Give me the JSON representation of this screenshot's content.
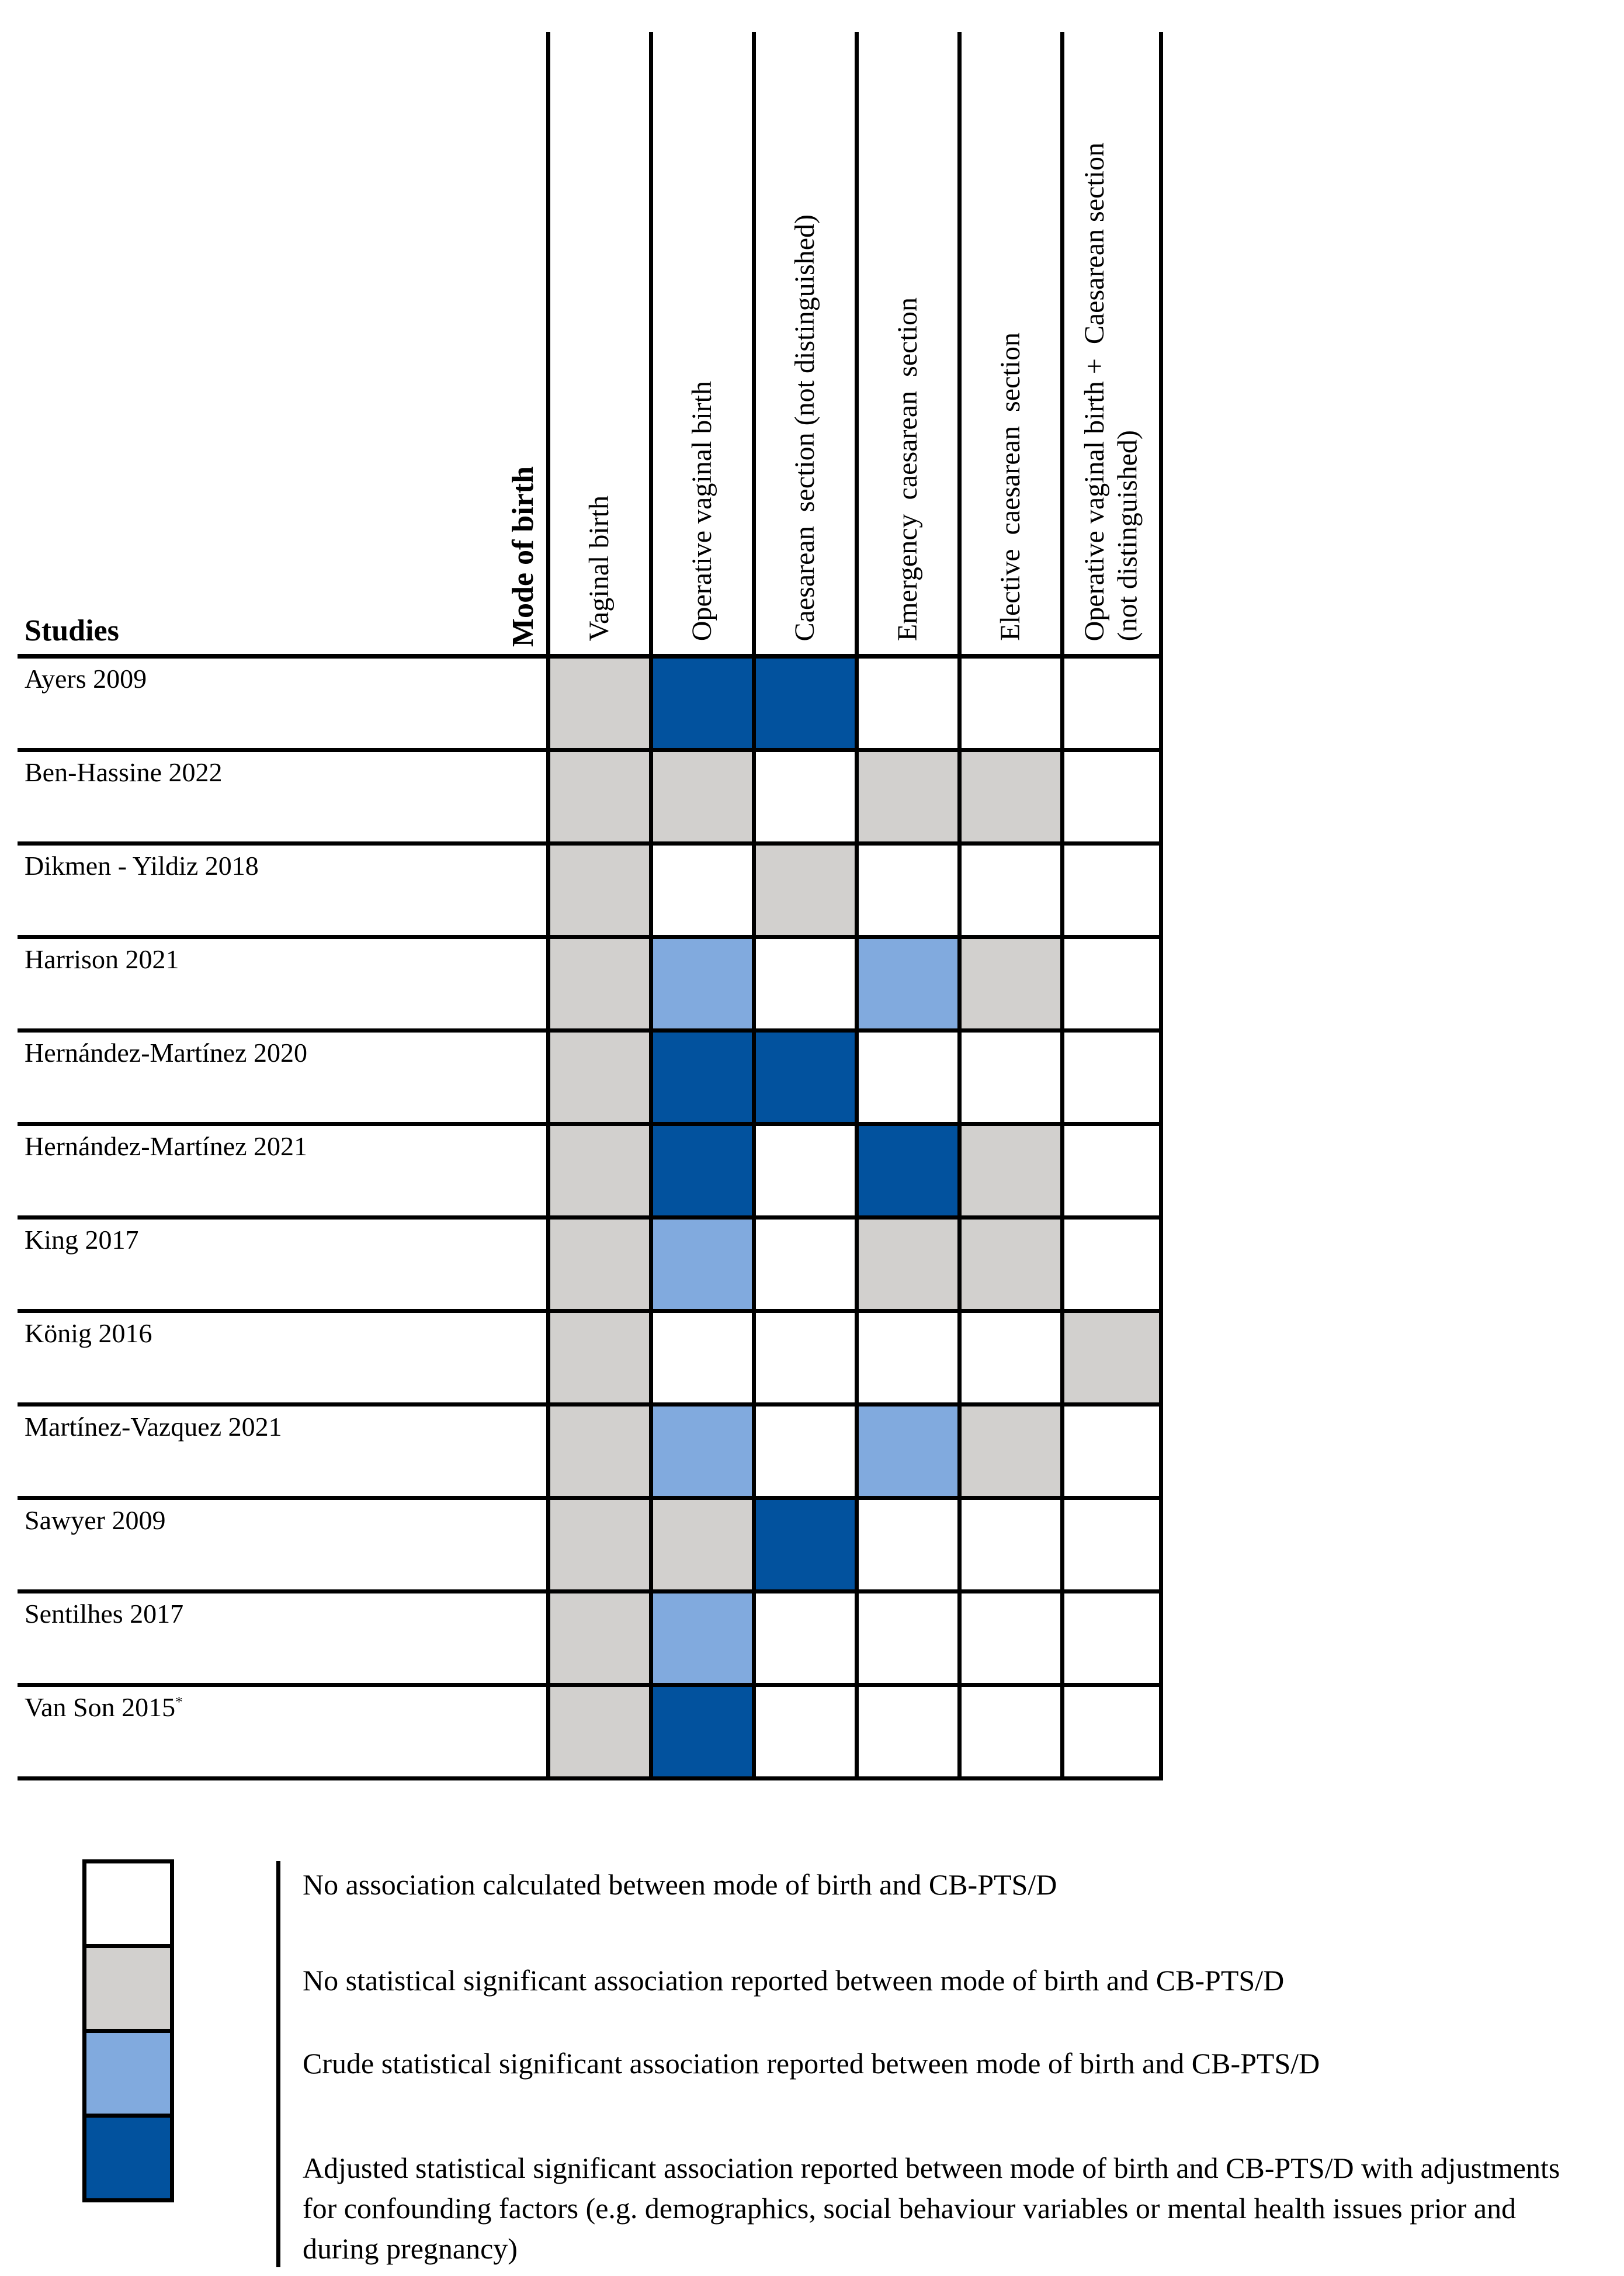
{
  "figure": {
    "studies_header": "Studies",
    "mode_of_birth_header": "Mode of birth"
  },
  "chart_data": {
    "type": "heatmap",
    "title": "",
    "columns": [
      "Vaginal birth",
      "Operative vaginal birth",
      "Caesarean  section (not distinguished)",
      "Emergency  caesarean  section",
      "Elective  caesarean  section",
      "Operative vaginal birth +  Caesarean section\n(not distinguished)"
    ],
    "studies": [
      {
        "label": "Ayers 2009",
        "sup": "",
        "cells": [
          "ns",
          "adj",
          "adj",
          "none",
          "none",
          "none"
        ]
      },
      {
        "label": "Ben-Hassine 2022",
        "sup": "",
        "cells": [
          "ns",
          "ns",
          "none",
          "ns",
          "ns",
          "none"
        ]
      },
      {
        "label": "Dikmen - Yildiz 2018",
        "sup": "",
        "cells": [
          "ns",
          "none",
          "ns",
          "none",
          "none",
          "none"
        ]
      },
      {
        "label": "Harrison 2021",
        "sup": "",
        "cells": [
          "ns",
          "crude",
          "none",
          "crude",
          "ns",
          "none"
        ]
      },
      {
        "label": "Hernández-Martínez 2020",
        "sup": "",
        "cells": [
          "ns",
          "adj",
          "adj",
          "none",
          "none",
          "none"
        ]
      },
      {
        "label": "Hernández-Martínez 2021",
        "sup": "",
        "cells": [
          "ns",
          "adj",
          "none",
          "adj",
          "ns",
          "none"
        ]
      },
      {
        "label": "King 2017",
        "sup": "",
        "cells": [
          "ns",
          "crude",
          "none",
          "ns",
          "ns",
          "none"
        ]
      },
      {
        "label": "König 2016",
        "sup": "",
        "cells": [
          "ns",
          "none",
          "none",
          "none",
          "none",
          "ns"
        ]
      },
      {
        "label": "Martínez-Vazquez 2021",
        "sup": "",
        "cells": [
          "ns",
          "crude",
          "none",
          "crude",
          "ns",
          "none"
        ]
      },
      {
        "label": "Sawyer 2009",
        "sup": "",
        "cells": [
          "ns",
          "ns",
          "adj",
          "none",
          "none",
          "none"
        ]
      },
      {
        "label": "Sentilhes 2017",
        "sup": "",
        "cells": [
          "ns",
          "crude",
          "none",
          "none",
          "none",
          "none"
        ]
      },
      {
        "label": "Van Son 2015",
        "sup": "*",
        "cells": [
          "ns",
          "adj",
          "none",
          "none",
          "none",
          "none"
        ]
      }
    ],
    "states": {
      "none": {
        "color": "#FFFFFF"
      },
      "ns": {
        "color": "#D2D0CE"
      },
      "crude": {
        "color": "#81AADE"
      },
      "adj": {
        "color": "#02529E"
      }
    },
    "legend": [
      {
        "state": "none",
        "color": "#FFFFFF",
        "text": "No association calculated between mode of birth and CB-PTS/D"
      },
      {
        "state": "ns",
        "color": "#D2D0CE",
        "text": "No statistical significant association reported between mode of birth and CB-PTS/D"
      },
      {
        "state": "crude",
        "color": "#81AADE",
        "text": "Crude statistical significant association reported between mode of birth and CB-PTS/D"
      },
      {
        "state": "adj",
        "color": "#02529E",
        "text": "Adjusted statistical significant association reported between mode of birth and CB-PTS/D with adjustments for confounding factors (e.g. demographics, social behaviour variables or mental health issues prior and during pregnancy)"
      }
    ],
    "layout": {
      "grid": "on",
      "legend_position": "bottom-left"
    }
  }
}
